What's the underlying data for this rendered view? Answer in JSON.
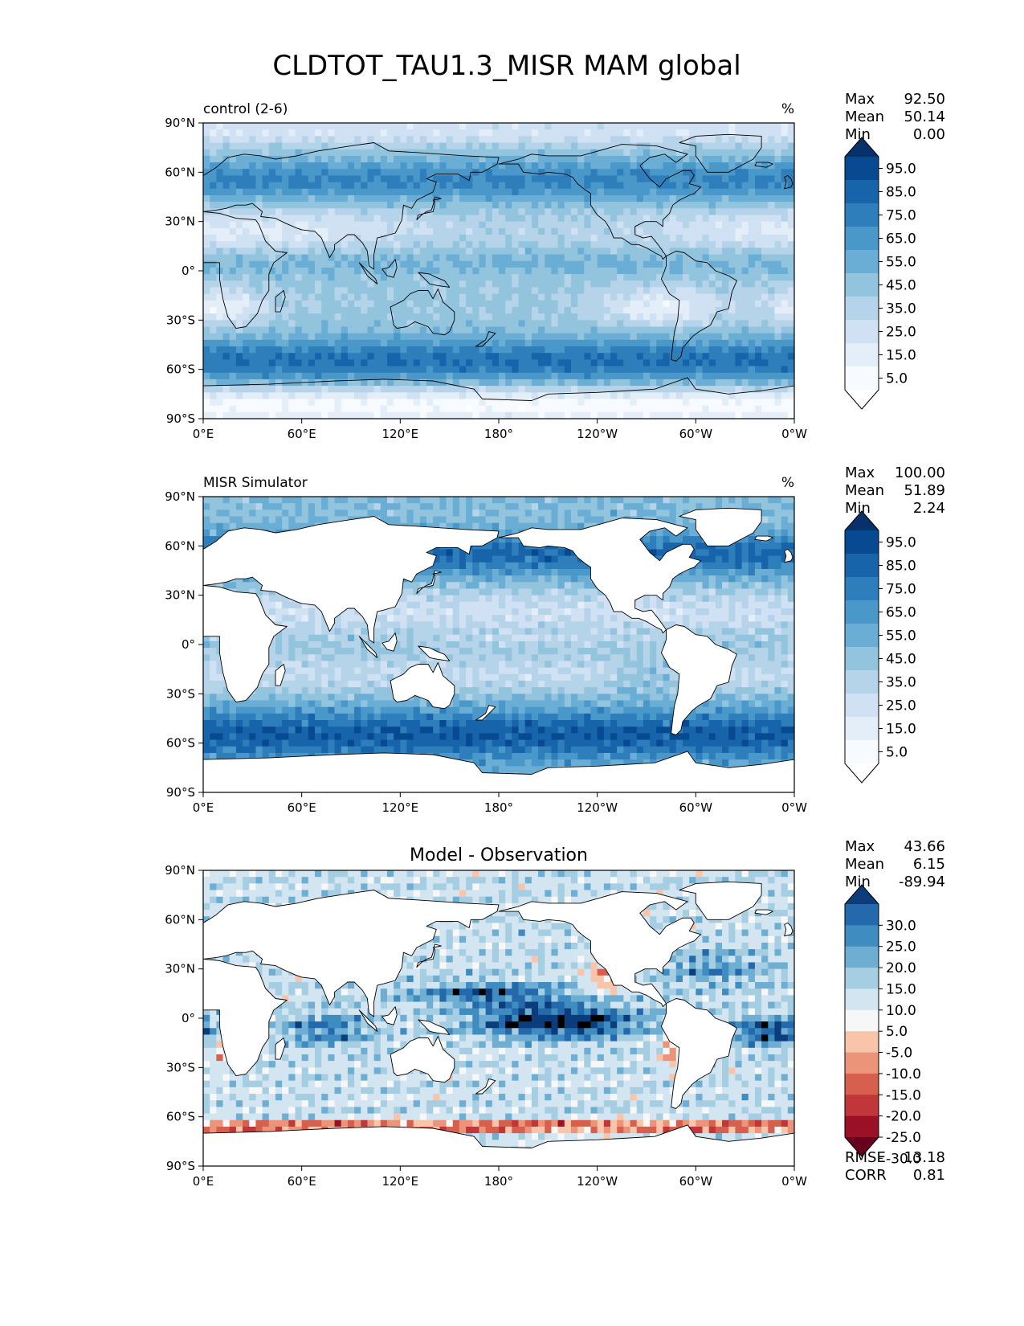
{
  "figure": {
    "title": "CLDTOT_TAU1.3_MISR MAM global"
  },
  "chart_data": [
    {
      "type": "heatmap",
      "title": "control (2-6)",
      "units": "%",
      "projection": "plate carree (global map)",
      "stats": [
        {
          "label": "Max",
          "value": "92.50"
        },
        {
          "label": "Mean",
          "value": "50.14"
        },
        {
          "label": "Min",
          "value": "0.00"
        }
      ],
      "x_ticks": [
        "0°E",
        "60°E",
        "120°E",
        "180°",
        "120°W",
        "60°W",
        "0°W"
      ],
      "y_ticks": [
        "90°N",
        "60°N",
        "30°N",
        "0°",
        "30°S",
        "60°S",
        "90°S"
      ],
      "xlim": [
        0,
        360
      ],
      "ylim": [
        -90,
        90
      ],
      "colorbar": {
        "colormap": "Blues",
        "extend": "both",
        "levels": [
          0,
          10,
          20,
          30,
          40,
          50,
          60,
          70,
          80,
          90,
          100
        ],
        "tick_labels": [
          "95.0",
          "85.0",
          "75.0",
          "65.0",
          "55.0",
          "45.0",
          "35.0",
          "25.0",
          "15.0",
          "5.0"
        ],
        "colors": [
          "#ffffff",
          "#f7fbff",
          "#e3eef9",
          "#cfe1f2",
          "#b5d4e9",
          "#93c4de",
          "#6aaed6",
          "#4a98c9",
          "#2e7ebc",
          "#1764ab",
          "#084a91",
          "#08306b"
        ]
      },
      "mask_land": false
    },
    {
      "type": "heatmap",
      "title": "MISR Simulator",
      "units": "%",
      "projection": "plate carree (global map)",
      "stats": [
        {
          "label": "Max",
          "value": "100.00"
        },
        {
          "label": "Mean",
          "value": "51.89"
        },
        {
          "label": "Min",
          "value": "2.24"
        }
      ],
      "x_ticks": [
        "0°E",
        "60°E",
        "120°E",
        "180°",
        "120°W",
        "60°W",
        "0°W"
      ],
      "y_ticks": [
        "90°N",
        "60°N",
        "30°N",
        "0°",
        "30°S",
        "60°S",
        "90°S"
      ],
      "xlim": [
        0,
        360
      ],
      "ylim": [
        -90,
        90
      ],
      "colorbar": {
        "colormap": "Blues",
        "extend": "both",
        "levels": [
          0,
          10,
          20,
          30,
          40,
          50,
          60,
          70,
          80,
          90,
          100
        ],
        "tick_labels": [
          "95.0",
          "85.0",
          "75.0",
          "65.0",
          "55.0",
          "45.0",
          "35.0",
          "25.0",
          "15.0",
          "5.0"
        ],
        "colors": [
          "#ffffff",
          "#f7fbff",
          "#e3eef9",
          "#cfe1f2",
          "#b5d4e9",
          "#93c4de",
          "#6aaed6",
          "#4a98c9",
          "#2e7ebc",
          "#1764ab",
          "#084a91",
          "#08306b"
        ]
      },
      "mask_land": true
    },
    {
      "type": "heatmap",
      "title": "Model - Observation",
      "units": "",
      "projection": "plate carree (global map)",
      "stats": [
        {
          "label": "Max",
          "value": "43.66"
        },
        {
          "label": "Mean",
          "value": "6.15"
        },
        {
          "label": "Min",
          "value": "-89.94"
        }
      ],
      "metrics": [
        {
          "label": "RMSE",
          "value": "13.18"
        },
        {
          "label": "CORR",
          "value": "0.81"
        }
      ],
      "x_ticks": [
        "0°E",
        "60°E",
        "120°E",
        "180°",
        "120°W",
        "60°W",
        "0°W"
      ],
      "y_ticks": [
        "90°N",
        "60°N",
        "30°N",
        "0°",
        "30°S",
        "60°S",
        "90°S"
      ],
      "xlim": [
        0,
        360
      ],
      "ylim": [
        -90,
        90
      ],
      "colorbar": {
        "colormap": "RdBu",
        "extend": "both",
        "levels": [
          -35,
          -30,
          -25,
          -20,
          -15,
          -10,
          -5,
          5,
          10,
          15,
          20,
          25,
          30,
          35
        ],
        "tick_labels": [
          "30.0",
          "25.0",
          "20.0",
          "15.0",
          "10.0",
          "5.0",
          "-5.0",
          "-10.0",
          "-15.0",
          "-20.0",
          "-25.0",
          "-30.0"
        ],
        "colors": [
          "#67001f",
          "#9a1027",
          "#c13639",
          "#d6604d",
          "#eb9479",
          "#f8c5aa",
          "#f7f7f7",
          "#d2e5f0",
          "#a5cee3",
          "#6eaed2",
          "#3f8dc0",
          "#2369ac",
          "#0b3c7b"
        ]
      },
      "mask_land": true
    }
  ]
}
